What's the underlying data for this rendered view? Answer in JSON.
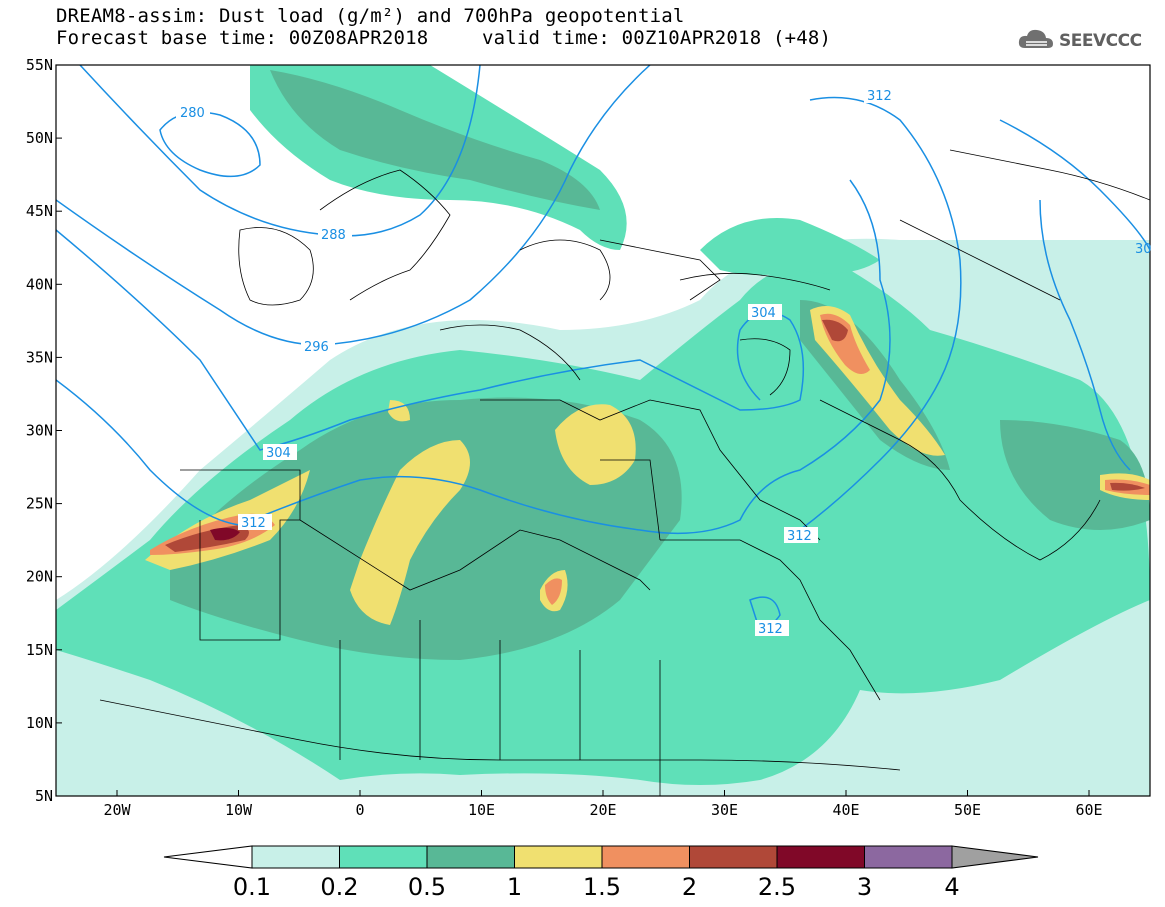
{
  "header": {
    "title_line1": "DREAM8-assim: Dust load (g/m²) and 700hPa geopotential",
    "base_time": "Forecast base time: 00Z08APR2018",
    "valid_time": "valid time: 00Z10APR2018 (+48)"
  },
  "logo": {
    "text": "SEEVCCC",
    "icon": "cloud-icon"
  },
  "axes": {
    "lat_labels": [
      "55N",
      "50N",
      "45N",
      "40N",
      "35N",
      "30N",
      "25N",
      "20N",
      "15N",
      "10N",
      "5N"
    ],
    "lon_labels": [
      "20W",
      "10W",
      "0",
      "10E",
      "20E",
      "30E",
      "40E",
      "50E",
      "60E"
    ]
  },
  "contours": {
    "labels": [
      "280",
      "288",
      "296",
      "304",
      "312",
      "304",
      "312",
      "312",
      "312",
      "30"
    ]
  },
  "colorbar": {
    "labels": [
      "0.1",
      "0.2",
      "0.5",
      "1",
      "1.5",
      "2",
      "2.5",
      "3",
      "4"
    ],
    "colors": [
      "#ffffff",
      "#c8f0e8",
      "#5fe0b8",
      "#58b896",
      "#f0e070",
      "#f09060",
      "#b04838",
      "#800828",
      "#8c68a0",
      "#a0a0a0"
    ]
  },
  "colors": {
    "contour": "#1a8fe3",
    "dust_low": "#c8f0e8",
    "dust_mid": "#5fe0b8",
    "dust_midhigh": "#58b896",
    "dust_high": "#f0e070",
    "dust_higher": "#f09060",
    "dust_max": "#b04838",
    "dust_peak": "#800828"
  }
}
